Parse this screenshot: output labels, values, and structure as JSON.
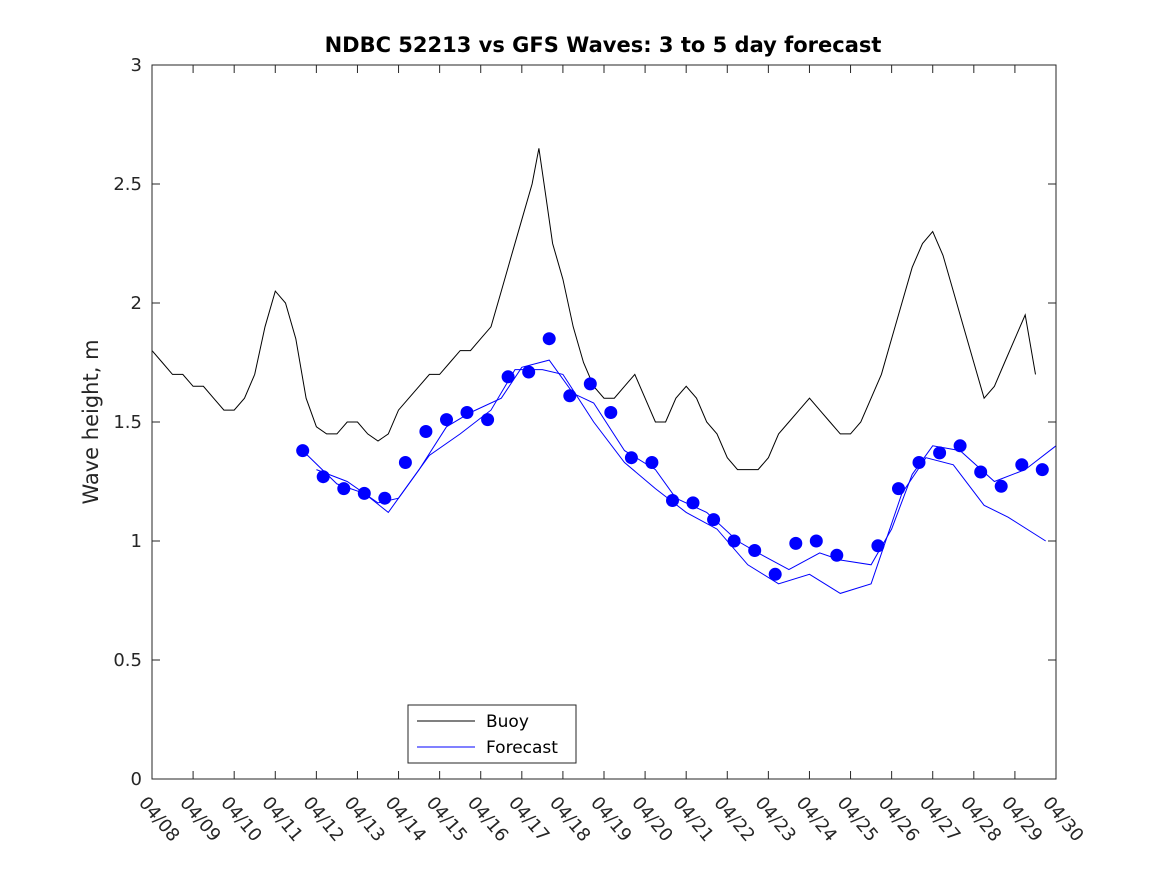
{
  "chart_data": {
    "type": "line",
    "title": "NDBC 52213 vs GFS Waves: 3 to 5 day forecast",
    "xlabel": "",
    "ylabel": "Wave height, m",
    "ylim": [
      0,
      3
    ],
    "yticks": [
      "0",
      "0.5",
      "1",
      "1.5",
      "2",
      "2.5",
      "3"
    ],
    "x_start": "04/08",
    "x_end": "04/30",
    "xticks": [
      "04/08",
      "04/09",
      "04/10",
      "04/11",
      "04/12",
      "04/13",
      "04/14",
      "04/15",
      "04/16",
      "04/17",
      "04/18",
      "04/19",
      "04/20",
      "04/21",
      "04/22",
      "04/23",
      "04/24",
      "04/25",
      "04/26",
      "04/27",
      "04/28",
      "04/29",
      "04/30"
    ],
    "grid": false,
    "legend": {
      "placement": "bottom-center",
      "entries": [
        "Buoy",
        "Forecast"
      ]
    },
    "colors": {
      "buoy": "#000000",
      "forecast": "#0000ff"
    },
    "series": [
      {
        "name": "Buoy",
        "color": "#000000",
        "style": "line",
        "points": [
          [
            "04/08 00:00",
            1.8
          ],
          [
            "04/08 06:00",
            1.75
          ],
          [
            "04/08 12:00",
            1.7
          ],
          [
            "04/08 18:00",
            1.7
          ],
          [
            "04/09 00:00",
            1.65
          ],
          [
            "04/09 06:00",
            1.65
          ],
          [
            "04/09 12:00",
            1.6
          ],
          [
            "04/09 18:00",
            1.55
          ],
          [
            "04/10 00:00",
            1.55
          ],
          [
            "04/10 06:00",
            1.6
          ],
          [
            "04/10 12:00",
            1.7
          ],
          [
            "04/10 18:00",
            1.9
          ],
          [
            "04/11 00:00",
            2.05
          ],
          [
            "04/11 06:00",
            2.0
          ],
          [
            "04/11 12:00",
            1.85
          ],
          [
            "04/11 18:00",
            1.6
          ],
          [
            "04/12 00:00",
            1.48
          ],
          [
            "04/12 06:00",
            1.45
          ],
          [
            "04/12 12:00",
            1.45
          ],
          [
            "04/12 18:00",
            1.5
          ],
          [
            "04/13 00:00",
            1.5
          ],
          [
            "04/13 06:00",
            1.45
          ],
          [
            "04/13 12:00",
            1.42
          ],
          [
            "04/13 18:00",
            1.45
          ],
          [
            "04/14 00:00",
            1.55
          ],
          [
            "04/14 06:00",
            1.6
          ],
          [
            "04/14 12:00",
            1.65
          ],
          [
            "04/14 18:00",
            1.7
          ],
          [
            "04/15 00:00",
            1.7
          ],
          [
            "04/15 06:00",
            1.75
          ],
          [
            "04/15 12:00",
            1.8
          ],
          [
            "04/15 18:00",
            1.8
          ],
          [
            "04/16 00:00",
            1.85
          ],
          [
            "04/16 06:00",
            1.9
          ],
          [
            "04/16 12:00",
            2.05
          ],
          [
            "04/16 18:00",
            2.2
          ],
          [
            "04/17 00:00",
            2.35
          ],
          [
            "04/17 06:00",
            2.5
          ],
          [
            "04/17 10:00",
            2.65
          ],
          [
            "04/17 14:00",
            2.45
          ],
          [
            "04/17 18:00",
            2.25
          ],
          [
            "04/18 00:00",
            2.1
          ],
          [
            "04/18 06:00",
            1.9
          ],
          [
            "04/18 12:00",
            1.75
          ],
          [
            "04/18 18:00",
            1.65
          ],
          [
            "04/19 00:00",
            1.6
          ],
          [
            "04/19 06:00",
            1.6
          ],
          [
            "04/19 12:00",
            1.65
          ],
          [
            "04/19 18:00",
            1.7
          ],
          [
            "04/20 00:00",
            1.6
          ],
          [
            "04/20 06:00",
            1.5
          ],
          [
            "04/20 12:00",
            1.5
          ],
          [
            "04/20 18:00",
            1.6
          ],
          [
            "04/21 00:00",
            1.65
          ],
          [
            "04/21 06:00",
            1.6
          ],
          [
            "04/21 12:00",
            1.5
          ],
          [
            "04/21 18:00",
            1.45
          ],
          [
            "04/22 00:00",
            1.35
          ],
          [
            "04/22 06:00",
            1.3
          ],
          [
            "04/22 12:00",
            1.3
          ],
          [
            "04/22 18:00",
            1.3
          ],
          [
            "04/23 00:00",
            1.35
          ],
          [
            "04/23 06:00",
            1.45
          ],
          [
            "04/23 12:00",
            1.5
          ],
          [
            "04/23 18:00",
            1.55
          ],
          [
            "04/24 00:00",
            1.6
          ],
          [
            "04/24 06:00",
            1.55
          ],
          [
            "04/24 12:00",
            1.5
          ],
          [
            "04/24 18:00",
            1.45
          ],
          [
            "04/25 00:00",
            1.45
          ],
          [
            "04/25 06:00",
            1.5
          ],
          [
            "04/25 12:00",
            1.6
          ],
          [
            "04/25 18:00",
            1.7
          ],
          [
            "04/26 00:00",
            1.85
          ],
          [
            "04/26 06:00",
            2.0
          ],
          [
            "04/26 12:00",
            2.15
          ],
          [
            "04/26 18:00",
            2.25
          ],
          [
            "04/27 00:00",
            2.3
          ],
          [
            "04/27 06:00",
            2.2
          ],
          [
            "04/27 12:00",
            2.05
          ],
          [
            "04/27 18:00",
            1.9
          ],
          [
            "04/28 00:00",
            1.75
          ],
          [
            "04/28 06:00",
            1.6
          ],
          [
            "04/28 12:00",
            1.65
          ],
          [
            "04/28 18:00",
            1.75
          ],
          [
            "04/29 00:00",
            1.85
          ],
          [
            "04/29 06:00",
            1.95
          ],
          [
            "04/29 12:00",
            1.7
          ]
        ]
      },
      {
        "name": "Forecast",
        "color": "#0000ff",
        "style": "markers",
        "points": [
          [
            "04/11 16:00",
            1.38
          ],
          [
            "04/12 04:00",
            1.27
          ],
          [
            "04/12 16:00",
            1.22
          ],
          [
            "04/13 04:00",
            1.2
          ],
          [
            "04/13 16:00",
            1.18
          ],
          [
            "04/14 04:00",
            1.33
          ],
          [
            "04/14 16:00",
            1.46
          ],
          [
            "04/15 04:00",
            1.51
          ],
          [
            "04/15 16:00",
            1.54
          ],
          [
            "04/16 04:00",
            1.51
          ],
          [
            "04/16 16:00",
            1.69
          ],
          [
            "04/17 04:00",
            1.71
          ],
          [
            "04/17 16:00",
            1.85
          ],
          [
            "04/18 04:00",
            1.61
          ],
          [
            "04/18 16:00",
            1.66
          ],
          [
            "04/19 04:00",
            1.54
          ],
          [
            "04/19 16:00",
            1.35
          ],
          [
            "04/20 04:00",
            1.33
          ],
          [
            "04/20 16:00",
            1.17
          ],
          [
            "04/21 04:00",
            1.16
          ],
          [
            "04/21 16:00",
            1.09
          ],
          [
            "04/22 04:00",
            1.0
          ],
          [
            "04/22 16:00",
            0.96
          ],
          [
            "04/23 04:00",
            0.86
          ],
          [
            "04/23 16:00",
            0.99
          ],
          [
            "04/24 04:00",
            1.0
          ],
          [
            "04/24 16:00",
            0.94
          ],
          [
            "04/25 16:00",
            0.98
          ],
          [
            "04/26 04:00",
            1.22
          ],
          [
            "04/26 16:00",
            1.33
          ],
          [
            "04/27 04:00",
            1.37
          ],
          [
            "04/27 16:00",
            1.4
          ],
          [
            "04/28 04:00",
            1.29
          ],
          [
            "04/28 16:00",
            1.23
          ],
          [
            "04/29 04:00",
            1.32
          ],
          [
            "04/29 16:00",
            1.3
          ]
        ]
      },
      {
        "name": "Forecast",
        "color": "#0000ff",
        "style": "line",
        "points": [
          [
            "04/11 16:00",
            1.38
          ],
          [
            "04/12 12:00",
            1.24
          ],
          [
            "04/13 04:00",
            1.2
          ],
          [
            "04/13 18:00",
            1.12
          ],
          [
            "04/14 12:00",
            1.3
          ],
          [
            "04/15 04:00",
            1.48
          ],
          [
            "04/15 18:00",
            1.54
          ],
          [
            "04/16 12:00",
            1.6
          ],
          [
            "04/17 00:00",
            1.73
          ],
          [
            "04/17 16:00",
            1.76
          ],
          [
            "04/18 06:00",
            1.62
          ],
          [
            "04/18 18:00",
            1.58
          ],
          [
            "04/19 12:00",
            1.38
          ],
          [
            "04/20 06:00",
            1.3
          ],
          [
            "04/20 18:00",
            1.18
          ],
          [
            "04/21 12:00",
            1.12
          ],
          [
            "04/22 06:00",
            1.0
          ],
          [
            "04/22 18:00",
            0.95
          ],
          [
            "04/23 12:00",
            0.88
          ],
          [
            "04/24 06:00",
            0.95
          ],
          [
            "04/24 18:00",
            0.92
          ],
          [
            "04/25 12:00",
            0.9
          ],
          [
            "04/26 00:00",
            1.05
          ],
          [
            "04/26 12:00",
            1.28
          ],
          [
            "04/27 00:00",
            1.4
          ],
          [
            "04/27 16:00",
            1.38
          ],
          [
            "04/28 12:00",
            1.25
          ],
          [
            "04/29 06:00",
            1.3
          ],
          [
            "04/30 00:00",
            1.4
          ]
        ]
      },
      {
        "name": "Forecast",
        "color": "#0000ff",
        "style": "line",
        "points": [
          [
            "04/12 00:00",
            1.3
          ],
          [
            "04/12 18:00",
            1.25
          ],
          [
            "04/13 12:00",
            1.16
          ],
          [
            "04/14 00:00",
            1.18
          ],
          [
            "04/14 18:00",
            1.36
          ],
          [
            "04/15 12:00",
            1.45
          ],
          [
            "04/16 06:00",
            1.55
          ],
          [
            "04/16 20:00",
            1.72
          ],
          [
            "04/17 12:00",
            1.72
          ],
          [
            "04/18 00:00",
            1.7
          ],
          [
            "04/18 18:00",
            1.5
          ],
          [
            "04/19 12:00",
            1.33
          ],
          [
            "04/20 06:00",
            1.22
          ],
          [
            "04/21 00:00",
            1.12
          ],
          [
            "04/21 18:00",
            1.05
          ],
          [
            "04/22 12:00",
            0.9
          ],
          [
            "04/23 06:00",
            0.82
          ],
          [
            "04/24 00:00",
            0.86
          ],
          [
            "04/24 18:00",
            0.78
          ],
          [
            "04/25 12:00",
            0.82
          ],
          [
            "04/26 06:00",
            1.2
          ],
          [
            "04/26 20:00",
            1.35
          ],
          [
            "04/27 12:00",
            1.32
          ],
          [
            "04/28 06:00",
            1.15
          ],
          [
            "04/28 20:00",
            1.1
          ],
          [
            "04/29 18:00",
            1.0
          ]
        ]
      }
    ]
  }
}
